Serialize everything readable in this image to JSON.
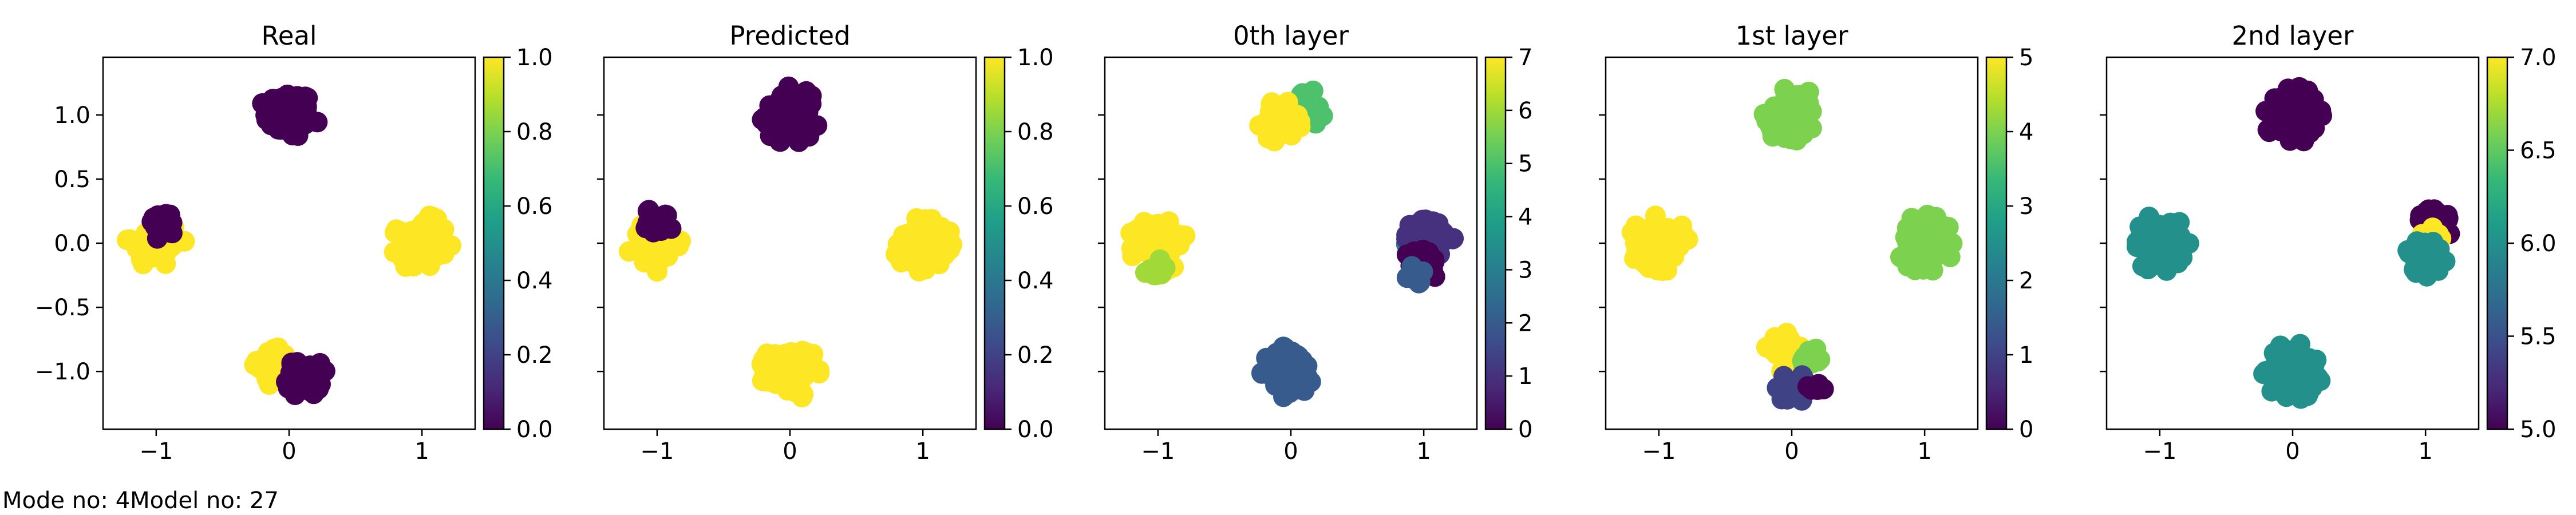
{
  "footnote": {
    "mode_label": "Mode no: 4",
    "model_label": "Model no: 27"
  },
  "chart_data": [
    {
      "type": "scatter",
      "title": "Real",
      "show_yticklabels": true,
      "xlim": [
        -1.4,
        1.4
      ],
      "ylim": [
        -1.45,
        1.45
      ],
      "xticks": [
        -1,
        0,
        1
      ],
      "yticks": [
        -1.0,
        -0.5,
        0.0,
        0.5,
        1.0
      ],
      "colorbar": {
        "range": [
          0.0,
          1.0
        ],
        "ticks": [
          0.0,
          0.2,
          0.4,
          0.6,
          0.8,
          1.0
        ],
        "decimals": 1,
        "colormap": "viridis"
      },
      "clusters": [
        {
          "cx": 0.0,
          "cy": 1.0,
          "r": 0.22,
          "n": 90,
          "value": 0.0
        },
        {
          "cx": -1.0,
          "cy": 0.0,
          "r": 0.22,
          "n": 70,
          "value": 1.0
        },
        {
          "cx": -0.95,
          "cy": 0.15,
          "r": 0.12,
          "n": 24,
          "value": 0.0
        },
        {
          "cx": 1.0,
          "cy": 0.0,
          "r": 0.22,
          "n": 90,
          "value": 1.0
        },
        {
          "cx": -0.1,
          "cy": -0.95,
          "r": 0.16,
          "n": 45,
          "value": 1.0
        },
        {
          "cx": 0.12,
          "cy": -1.05,
          "r": 0.16,
          "n": 40,
          "value": 0.0
        }
      ]
    },
    {
      "type": "scatter",
      "title": "Predicted",
      "show_yticklabels": false,
      "xlim": [
        -1.4,
        1.4
      ],
      "ylim": [
        -1.45,
        1.45
      ],
      "xticks": [
        -1,
        0,
        1
      ],
      "yticks": [
        -1.0,
        -0.5,
        0.0,
        0.5,
        1.0
      ],
      "colorbar": {
        "range": [
          0.0,
          1.0
        ],
        "ticks": [
          0.0,
          0.2,
          0.4,
          0.6,
          0.8,
          1.0
        ],
        "decimals": 1,
        "colormap": "viridis"
      },
      "clusters": [
        {
          "cx": 0.0,
          "cy": 1.0,
          "r": 0.22,
          "n": 90,
          "value": 0.0
        },
        {
          "cx": -1.0,
          "cy": 0.0,
          "r": 0.22,
          "n": 70,
          "value": 1.0
        },
        {
          "cx": -0.98,
          "cy": 0.17,
          "r": 0.12,
          "n": 22,
          "value": 0.0
        },
        {
          "cx": 1.0,
          "cy": 0.0,
          "r": 0.22,
          "n": 90,
          "value": 1.0
        },
        {
          "cx": 0.0,
          "cy": -1.0,
          "r": 0.22,
          "n": 90,
          "value": 1.0
        }
      ]
    },
    {
      "type": "scatter",
      "title": "0th layer",
      "show_yticklabels": false,
      "xlim": [
        -1.4,
        1.4
      ],
      "ylim": [
        -1.45,
        1.45
      ],
      "xticks": [
        -1,
        0,
        1
      ],
      "yticks": [
        -1.0,
        -0.5,
        0.0,
        0.5,
        1.0
      ],
      "colorbar": {
        "range": [
          0,
          7
        ],
        "ticks": [
          0,
          1,
          2,
          3,
          4,
          5,
          6,
          7
        ],
        "decimals": 0,
        "colormap": "viridis"
      },
      "clusters": [
        {
          "cx": 0.12,
          "cy": 1.05,
          "r": 0.15,
          "n": 40,
          "value": 5
        },
        {
          "cx": -0.08,
          "cy": 0.95,
          "r": 0.16,
          "n": 50,
          "value": 7
        },
        {
          "cx": -1.0,
          "cy": 0.0,
          "r": 0.22,
          "n": 80,
          "value": 7
        },
        {
          "cx": -1.02,
          "cy": -0.2,
          "r": 0.08,
          "n": 12,
          "value": 6
        },
        {
          "cx": 0.95,
          "cy": 0.0,
          "r": 0.1,
          "n": 18,
          "value": 3
        },
        {
          "cx": 1.05,
          "cy": 0.05,
          "r": 0.18,
          "n": 60,
          "value": 1
        },
        {
          "cx": 1.0,
          "cy": -0.15,
          "r": 0.14,
          "n": 25,
          "value": 0
        },
        {
          "cx": 0.95,
          "cy": -0.25,
          "r": 0.08,
          "n": 10,
          "value": 2
        },
        {
          "cx": 0.0,
          "cy": -1.0,
          "r": 0.22,
          "n": 90,
          "value": 2
        }
      ]
    },
    {
      "type": "scatter",
      "title": "1st layer",
      "show_yticklabels": false,
      "xlim": [
        -1.4,
        1.4
      ],
      "ylim": [
        -1.45,
        1.45
      ],
      "xticks": [
        -1,
        0,
        1
      ],
      "yticks": [
        -1.0,
        -0.5,
        0.0,
        0.5,
        1.0
      ],
      "colorbar": {
        "range": [
          0,
          5
        ],
        "ticks": [
          0,
          1,
          2,
          3,
          4,
          5
        ],
        "decimals": 0,
        "colormap": "viridis"
      },
      "clusters": [
        {
          "cx": 0.0,
          "cy": 1.0,
          "r": 0.22,
          "n": 90,
          "value": 4
        },
        {
          "cx": -1.0,
          "cy": 0.0,
          "r": 0.22,
          "n": 90,
          "value": 5
        },
        {
          "cx": 1.0,
          "cy": 0.0,
          "r": 0.22,
          "n": 90,
          "value": 4
        },
        {
          "cx": -0.05,
          "cy": -0.85,
          "r": 0.15,
          "n": 45,
          "value": 5
        },
        {
          "cx": 0.15,
          "cy": -0.9,
          "r": 0.1,
          "n": 15,
          "value": 4
        },
        {
          "cx": 0.0,
          "cy": -1.12,
          "r": 0.13,
          "n": 35,
          "value": 1
        },
        {
          "cx": 0.2,
          "cy": -1.12,
          "r": 0.08,
          "n": 10,
          "value": 0
        }
      ]
    },
    {
      "type": "scatter",
      "title": "2nd layer",
      "show_yticklabels": false,
      "xlim": [
        -1.4,
        1.4
      ],
      "ylim": [
        -1.45,
        1.45
      ],
      "xticks": [
        -1,
        0,
        1
      ],
      "yticks": [
        -1.0,
        -0.5,
        0.0,
        0.5,
        1.0
      ],
      "colorbar": {
        "range": [
          5.0,
          7.0
        ],
        "ticks": [
          5.0,
          5.5,
          6.0,
          6.5,
          7.0
        ],
        "decimals": 1,
        "colormap": "viridis"
      },
      "clusters": [
        {
          "cx": 0.0,
          "cy": 1.0,
          "r": 0.22,
          "n": 90,
          "value": 5.0
        },
        {
          "cx": -1.0,
          "cy": 0.0,
          "r": 0.22,
          "n": 90,
          "value": 6.0
        },
        {
          "cx": 0.0,
          "cy": -1.0,
          "r": 0.22,
          "n": 90,
          "value": 6.0
        },
        {
          "cx": 1.08,
          "cy": 0.16,
          "r": 0.14,
          "n": 35,
          "value": 5.0
        },
        {
          "cx": 1.05,
          "cy": 0.02,
          "r": 0.1,
          "n": 15,
          "value": 7.0
        },
        {
          "cx": 1.0,
          "cy": -0.1,
          "r": 0.16,
          "n": 45,
          "value": 6.0
        }
      ]
    }
  ]
}
